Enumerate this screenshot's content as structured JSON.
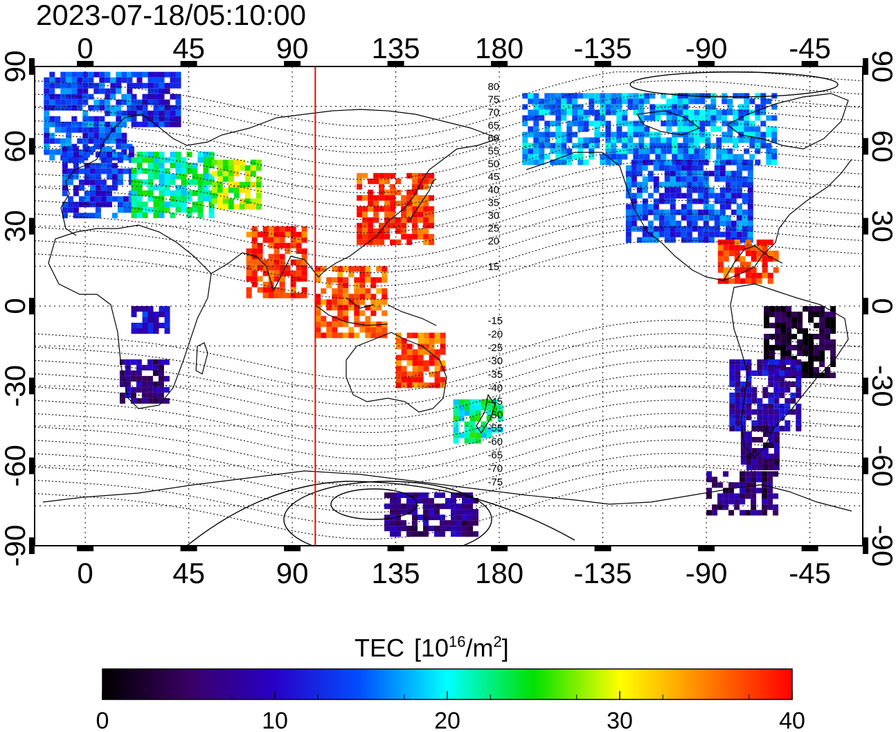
{
  "timestamp": "2023-07-18/05:10:00",
  "axes": {
    "top_lon_ticks": [
      "0",
      "45",
      "90",
      "135",
      "180",
      "-135",
      "-90",
      "-45"
    ],
    "bottom_lon_ticks": [
      "0",
      "45",
      "90",
      "135",
      "180",
      "-135",
      "-90",
      "-45"
    ],
    "left_lat_ticks": [
      "90",
      "60",
      "30",
      "0",
      "-30",
      "-60",
      "-90"
    ],
    "right_lat_ticks": [
      "90",
      "60",
      "30",
      "0",
      "-30",
      "-60",
      "-90"
    ],
    "lon_range": [
      -22,
      338
    ],
    "lat_range": [
      -90,
      90
    ]
  },
  "contour_labels": {
    "north": [
      "80",
      "75",
      "70",
      "65",
      "60",
      "55",
      "50",
      "45",
      "40",
      "35",
      "30",
      "25",
      "20",
      "15"
    ],
    "south": [
      "-15",
      "-20",
      "-25",
      "-30",
      "-35",
      "-40",
      "-45",
      "-50",
      "-55",
      "-60",
      "-65",
      "-70",
      "-75"
    ]
  },
  "terminator_longitude": 100,
  "colorbar": {
    "title": "TEC",
    "unit_base": "[10",
    "unit_exp": "16",
    "unit_mid": "/m",
    "unit_exp2": "2",
    "unit_close": "]",
    "min": 0,
    "max": 40,
    "ticks": [
      "0",
      "10",
      "20",
      "30",
      "40"
    ],
    "colors": [
      "#000000",
      "#3a0064",
      "#2800c8",
      "#0050ff",
      "#00ffff",
      "#00e000",
      "#ffff00",
      "#ff8000",
      "#ff0000"
    ]
  },
  "chart_data": {
    "type": "heatmap",
    "title": "2023-07-18/05:10:00",
    "xlabel": "",
    "ylabel": "",
    "x": "longitude",
    "y": "latitude",
    "value_name": "TEC [10^16/m^2]",
    "value_range": [
      0,
      40
    ],
    "regions": [
      {
        "lon": [
          -18,
          20
        ],
        "lat": [
          55,
          88
        ],
        "tec": 14
      },
      {
        "lon": [
          20,
          40
        ],
        "lat": [
          68,
          88
        ],
        "tec": 12
      },
      {
        "lon": [
          -10,
          20
        ],
        "lat": [
          35,
          60
        ],
        "tec": 13
      },
      {
        "lon": [
          20,
          55
        ],
        "lat": [
          35,
          58
        ],
        "tec": 22
      },
      {
        "lon": [
          55,
          75
        ],
        "lat": [
          38,
          55
        ],
        "tec": 28
      },
      {
        "lon": [
          118,
          150
        ],
        "lat": [
          25,
          50
        ],
        "tec": 38
      },
      {
        "lon": [
          70,
          95
        ],
        "lat": [
          5,
          30
        ],
        "tec": 38
      },
      {
        "lon": [
          100,
          130
        ],
        "lat": [
          -10,
          15
        ],
        "tec": 37
      },
      {
        "lon": [
          135,
          155
        ],
        "lat": [
          -30,
          -10
        ],
        "tec": 37
      },
      {
        "lon": [
          15,
          35
        ],
        "lat": [
          -35,
          -20
        ],
        "tec": 7
      },
      {
        "lon": [
          20,
          35
        ],
        "lat": [
          -10,
          0
        ],
        "tec": 11
      },
      {
        "lon": [
          160,
          180
        ],
        "lat": [
          -50,
          -35
        ],
        "tec": 22
      },
      {
        "lon": [
          -170,
          -60
        ],
        "lat": [
          55,
          80
        ],
        "tec": 17
      },
      {
        "lon": [
          -125,
          -70
        ],
        "lat": [
          25,
          55
        ],
        "tec": 14
      },
      {
        "lon": [
          -85,
          -60
        ],
        "lat": [
          10,
          25
        ],
        "tec": 38
      },
      {
        "lon": [
          -65,
          -35
        ],
        "lat": [
          -25,
          0
        ],
        "tec": 2
      },
      {
        "lon": [
          -80,
          -50
        ],
        "lat": [
          -45,
          -20
        ],
        "tec": 9
      },
      {
        "lon": [
          -75,
          -60
        ],
        "lat": [
          -60,
          -45
        ],
        "tec": 6
      },
      {
        "lon": [
          130,
          170
        ],
        "lat": [
          -85,
          -70
        ],
        "tec": 7
      },
      {
        "lon": [
          -90,
          -60
        ],
        "lat": [
          -78,
          -62
        ],
        "tec": 6
      }
    ]
  }
}
